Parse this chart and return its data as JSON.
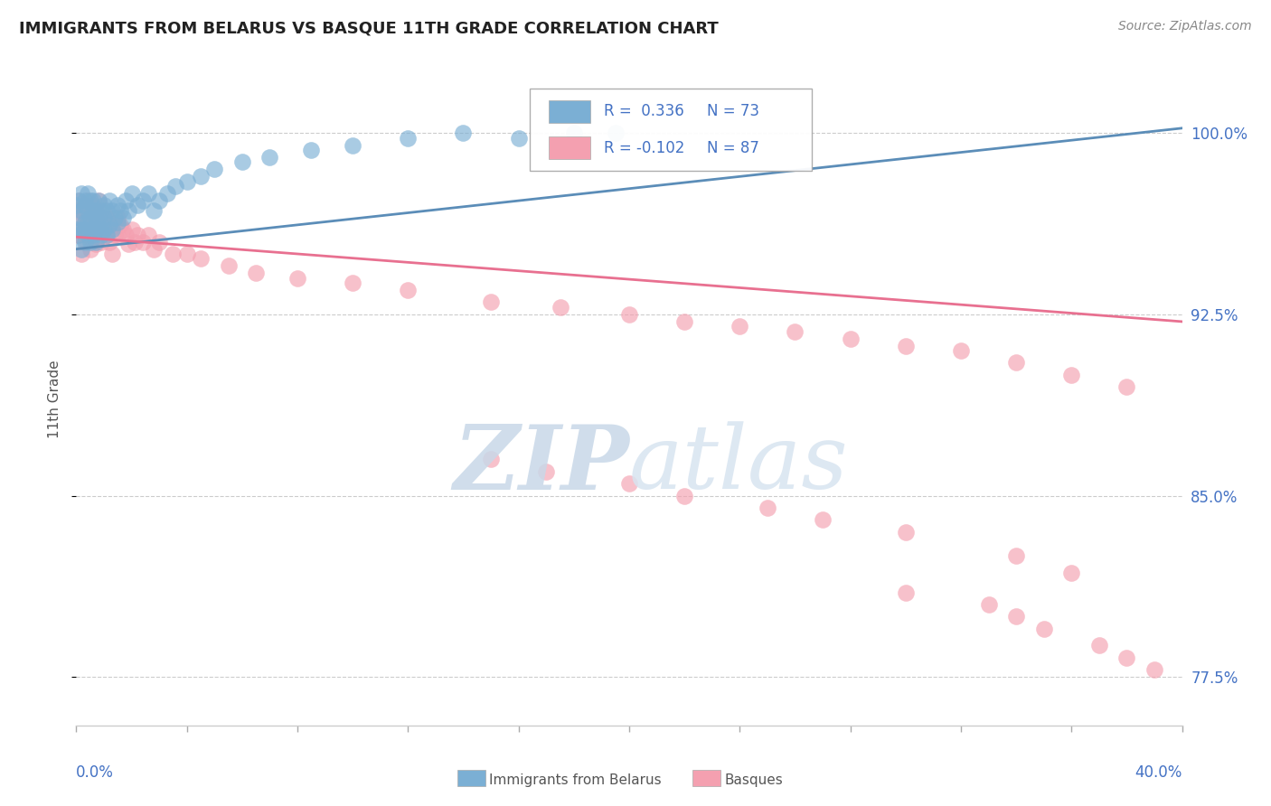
{
  "title": "IMMIGRANTS FROM BELARUS VS BASQUE 11TH GRADE CORRELATION CHART",
  "source": "Source: ZipAtlas.com",
  "ylabel": "11th Grade",
  "x_min": 0.0,
  "x_max": 0.4,
  "y_min": 0.755,
  "y_max": 1.025,
  "yticks": [
    0.775,
    0.85,
    0.925,
    1.0
  ],
  "ytick_labels": [
    "77.5%",
    "85.0%",
    "92.5%",
    "100.0%"
  ],
  "blue_R": 0.336,
  "blue_N": 73,
  "pink_R": -0.102,
  "pink_N": 87,
  "blue_color": "#7bafd4",
  "pink_color": "#f4a0b0",
  "blue_line_color": "#5b8db8",
  "pink_line_color": "#e87090",
  "watermark_color": "#d0dce8",
  "background_color": "#ffffff",
  "grid_color": "#cccccc",
  "axis_label_color": "#4472c4",
  "blue_line_x": [
    0.0,
    0.4
  ],
  "blue_line_y": [
    0.952,
    1.002
  ],
  "pink_line_x": [
    0.0,
    0.4
  ],
  "pink_line_y": [
    0.957,
    0.922
  ],
  "blue_scatter_x": [
    0.0,
    0.0,
    0.001,
    0.001,
    0.001,
    0.002,
    0.002,
    0.002,
    0.002,
    0.003,
    0.003,
    0.003,
    0.003,
    0.003,
    0.004,
    0.004,
    0.004,
    0.004,
    0.005,
    0.005,
    0.005,
    0.005,
    0.005,
    0.006,
    0.006,
    0.006,
    0.006,
    0.007,
    0.007,
    0.007,
    0.007,
    0.008,
    0.008,
    0.008,
    0.009,
    0.009,
    0.009,
    0.01,
    0.01,
    0.01,
    0.011,
    0.011,
    0.012,
    0.012,
    0.013,
    0.013,
    0.014,
    0.015,
    0.015,
    0.016,
    0.017,
    0.018,
    0.019,
    0.02,
    0.022,
    0.024,
    0.026,
    0.028,
    0.03,
    0.033,
    0.036,
    0.04,
    0.045,
    0.05,
    0.06,
    0.07,
    0.085,
    0.1,
    0.12,
    0.14,
    0.16,
    0.18,
    0.195
  ],
  "blue_scatter_y": [
    0.96,
    0.97,
    0.965,
    0.972,
    0.958,
    0.968,
    0.975,
    0.96,
    0.952,
    0.97,
    0.963,
    0.955,
    0.972,
    0.96,
    0.968,
    0.958,
    0.975,
    0.963,
    0.965,
    0.972,
    0.958,
    0.96,
    0.955,
    0.968,
    0.972,
    0.96,
    0.958,
    0.965,
    0.96,
    0.968,
    0.955,
    0.972,
    0.96,
    0.965,
    0.968,
    0.958,
    0.962,
    0.97,
    0.96,
    0.965,
    0.968,
    0.958,
    0.972,
    0.962,
    0.968,
    0.96,
    0.965,
    0.97,
    0.963,
    0.968,
    0.965,
    0.972,
    0.968,
    0.975,
    0.97,
    0.972,
    0.975,
    0.968,
    0.972,
    0.975,
    0.978,
    0.98,
    0.982,
    0.985,
    0.988,
    0.99,
    0.993,
    0.995,
    0.998,
    1.0,
    0.998,
    1.0,
    1.0
  ],
  "pink_scatter_x": [
    0.0,
    0.0,
    0.001,
    0.001,
    0.001,
    0.002,
    0.002,
    0.002,
    0.003,
    0.003,
    0.003,
    0.003,
    0.004,
    0.004,
    0.004,
    0.005,
    0.005,
    0.005,
    0.006,
    0.006,
    0.006,
    0.007,
    0.007,
    0.007,
    0.008,
    0.008,
    0.008,
    0.009,
    0.009,
    0.01,
    0.01,
    0.011,
    0.011,
    0.012,
    0.012,
    0.013,
    0.013,
    0.014,
    0.015,
    0.015,
    0.016,
    0.017,
    0.018,
    0.019,
    0.02,
    0.021,
    0.022,
    0.024,
    0.026,
    0.028,
    0.03,
    0.035,
    0.04,
    0.045,
    0.055,
    0.065,
    0.08,
    0.1,
    0.12,
    0.15,
    0.175,
    0.2,
    0.22,
    0.24,
    0.26,
    0.28,
    0.3,
    0.32,
    0.34,
    0.36,
    0.38,
    0.15,
    0.17,
    0.2,
    0.22,
    0.25,
    0.27,
    0.3,
    0.34,
    0.36,
    0.3,
    0.33,
    0.34,
    0.35,
    0.37,
    0.38,
    0.39
  ],
  "pink_scatter_y": [
    0.958,
    0.968,
    0.965,
    0.958,
    0.972,
    0.96,
    0.95,
    0.968,
    0.963,
    0.956,
    0.97,
    0.958,
    0.965,
    0.958,
    0.972,
    0.96,
    0.952,
    0.968,
    0.963,
    0.957,
    0.97,
    0.96,
    0.954,
    0.968,
    0.963,
    0.957,
    0.972,
    0.96,
    0.955,
    0.968,
    0.962,
    0.958,
    0.965,
    0.96,
    0.955,
    0.962,
    0.95,
    0.958,
    0.965,
    0.958,
    0.962,
    0.96,
    0.958,
    0.954,
    0.96,
    0.955,
    0.958,
    0.955,
    0.958,
    0.952,
    0.955,
    0.95,
    0.95,
    0.948,
    0.945,
    0.942,
    0.94,
    0.938,
    0.935,
    0.93,
    0.928,
    0.925,
    0.922,
    0.92,
    0.918,
    0.915,
    0.912,
    0.91,
    0.905,
    0.9,
    0.895,
    0.865,
    0.86,
    0.855,
    0.85,
    0.845,
    0.84,
    0.835,
    0.825,
    0.818,
    0.81,
    0.805,
    0.8,
    0.795,
    0.788,
    0.783,
    0.778
  ]
}
